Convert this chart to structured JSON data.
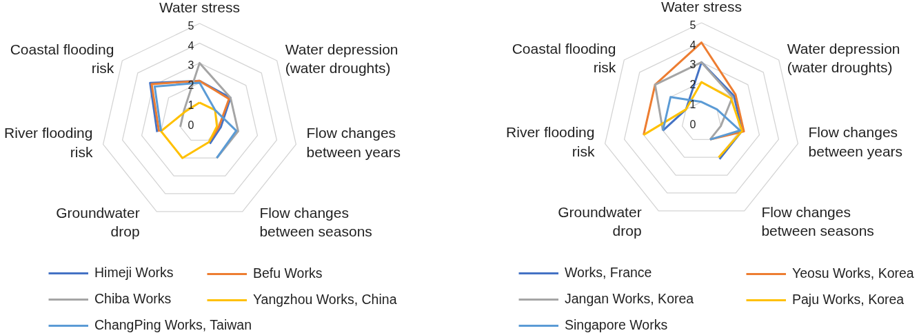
{
  "chart_data": [
    {
      "type": "radar",
      "categories": [
        "Water stress",
        "Water depression\n(water droughts)",
        "Flow changes\nbetween years",
        "Flow changes\nbetween seasons",
        "Groundwater\ndrop",
        "River flooding\nrisk",
        "Coastal flooding\nrisk"
      ],
      "ylim": [
        0,
        5
      ],
      "yticks": [
        0,
        1,
        2,
        3,
        4,
        5
      ],
      "grid": true,
      "legend": "bottom",
      "series": [
        {
          "name": "Himeji Works",
          "color": "#4472c4",
          "values": [
            2.1,
            2.0,
            1.1,
            1.2,
            null,
            2.2,
            3.2
          ]
        },
        {
          "name": "Befu Works",
          "color": "#ed7d31",
          "values": [
            2.1,
            1.9,
            1.0,
            1.1,
            null,
            2.1,
            3.1
          ]
        },
        {
          "name": "Chiba Works",
          "color": "#a5a5a5",
          "values": [
            3.0,
            2.0,
            2.0,
            2.0,
            null,
            1.0,
            1.0
          ]
        },
        {
          "name": "Yangzhou Works, China",
          "color": "#ffc000",
          "values": [
            1.0,
            1.0,
            0.9,
            1.1,
            2.0,
            2.0,
            0.9
          ]
        },
        {
          "name": "ChangPing Works, Taiwan",
          "color": "#5b9bd5",
          "values": [
            2.0,
            1.0,
            1.9,
            2.0,
            null,
            2.0,
            2.9
          ]
        }
      ]
    },
    {
      "type": "radar",
      "categories": [
        "Water stress",
        "Water depression\n(water droughts)",
        "Flow changes\nbetween years",
        "Flow changes\nbetween seasons",
        "Groundwater\ndrop",
        "River flooding\nrisk",
        "Coastal flooding\nrisk"
      ],
      "ylim": [
        0,
        5
      ],
      "yticks": [
        0,
        1,
        2,
        3,
        4,
        5
      ],
      "grid": true,
      "legend": "bottom",
      "series": [
        {
          "name": "Works, France",
          "color": "#4472c4",
          "values": [
            3.0,
            2.1,
            2.1,
            2.1,
            null,
            2.0,
            1.0
          ]
        },
        {
          "name": "Yeosu Works, Korea",
          "color": "#ed7d31",
          "values": [
            4.0,
            2.2,
            2.2,
            1.0,
            null,
            3.0,
            3.0
          ]
        },
        {
          "name": "Jangan Works, Korea",
          "color": "#a5a5a5",
          "values": [
            3.0,
            2.0,
            1.0,
            1.0,
            null,
            2.0,
            3.0
          ]
        },
        {
          "name": "Paju Works, Korea",
          "color": "#ffc000",
          "values": [
            2.0,
            1.9,
            2.1,
            2.0,
            null,
            3.0,
            1.0
          ]
        },
        {
          "name": "Singapore Works",
          "color": "#5b9bd5",
          "values": [
            1.0,
            1.0,
            2.0,
            1.0,
            null,
            2.0,
            2.0
          ]
        }
      ]
    }
  ]
}
